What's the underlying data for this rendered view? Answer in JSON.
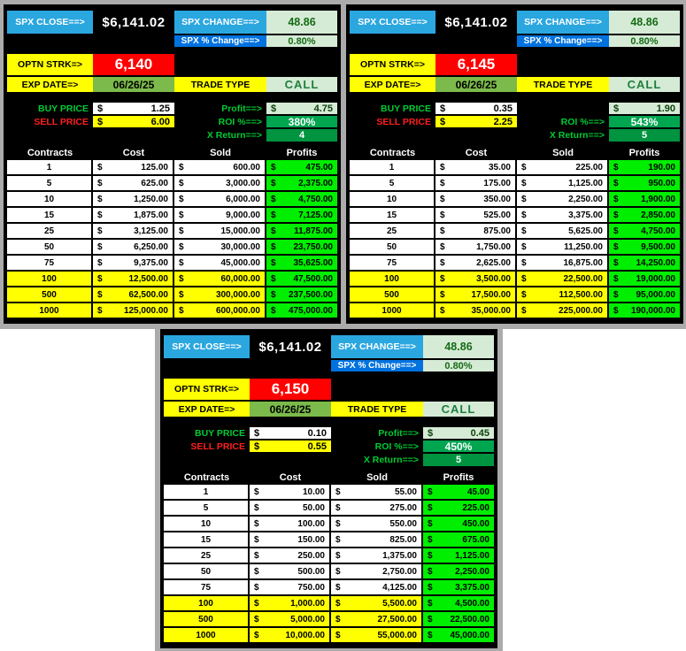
{
  "colors": {
    "page_bg": "#ffffff",
    "backdrop_gray": "#ababab",
    "panel_bg": "#000000",
    "label_cyan": "#2ba7e0",
    "label_blue": "#0072df",
    "label_yellow": "#ffff00",
    "pale_green_cell": "#d6ebd6",
    "dark_green_text": "#156b15",
    "strike_red": "#ff0000",
    "exp_date_green": "#7bba4b",
    "roi_green": "#00a550",
    "x_return_green": "#009440",
    "profit_bright_green": "#00ee00",
    "buy_label_green": "#00cc33",
    "sell_label_red": "#ff1f1f"
  },
  "panels": [
    {
      "currency": "$",
      "spx_close_label": "SPX CLOSE==>",
      "spx_close_value": "$6,141.02",
      "spx_change_label": "SPX CHANGE==>",
      "spx_change_value": "48.86",
      "spx_pct_change_label": "SPX % Change==>",
      "spx_pct_change_value": "0.80%",
      "optn_strk_label": "OPTN STRK=>",
      "strike": "6,140",
      "exp_date_label": "EXP DATE=>",
      "exp_date": "06/26/25",
      "trade_type_label": "TRADE TYPE",
      "trade_type": "CALL",
      "buy_price_label": "BUY PRICE",
      "buy_price": "1.25",
      "sell_price_label": "SELL PRICE",
      "sell_price": "6.00",
      "profit_label": "Profit==>",
      "profit": "4.75",
      "roi_label": "ROI %==>",
      "roi": "380%",
      "x_return_label": "X Return==>",
      "x_return": "4",
      "table": {
        "headers": [
          "Contracts",
          "Cost",
          "Sold",
          "Profits"
        ],
        "rows": [
          {
            "contracts": "1",
            "cost": "125.00",
            "sold": "600.00",
            "profit": "475.00",
            "highlight": false
          },
          {
            "contracts": "5",
            "cost": "625.00",
            "sold": "3,000.00",
            "profit": "2,375.00",
            "highlight": false
          },
          {
            "contracts": "10",
            "cost": "1,250.00",
            "sold": "6,000.00",
            "profit": "4,750.00",
            "highlight": false
          },
          {
            "contracts": "15",
            "cost": "1,875.00",
            "sold": "9,000.00",
            "profit": "7,125.00",
            "highlight": false
          },
          {
            "contracts": "25",
            "cost": "3,125.00",
            "sold": "15,000.00",
            "profit": "11,875.00",
            "highlight": false
          },
          {
            "contracts": "50",
            "cost": "6,250.00",
            "sold": "30,000.00",
            "profit": "23,750.00",
            "highlight": false
          },
          {
            "contracts": "75",
            "cost": "9,375.00",
            "sold": "45,000.00",
            "profit": "35,625.00",
            "highlight": false
          },
          {
            "contracts": "100",
            "cost": "12,500.00",
            "sold": "60,000.00",
            "profit": "47,500.00",
            "highlight": true
          },
          {
            "contracts": "500",
            "cost": "62,500.00",
            "sold": "300,000.00",
            "profit": "237,500.00",
            "highlight": true
          },
          {
            "contracts": "1000",
            "cost": "125,000.00",
            "sold": "600,000.00",
            "profit": "475,000.00",
            "highlight": true
          }
        ]
      }
    },
    {
      "currency": "$",
      "spx_close_label": "SPX CLOSE==>",
      "spx_close_value": "$6,141.02",
      "spx_change_label": "SPX CHANGE==>",
      "spx_change_value": "48.86",
      "spx_pct_change_label": "SPX % Change==>",
      "spx_pct_change_value": "0.80%",
      "optn_strk_label": "OPTN STRK=>",
      "strike": "6,145",
      "exp_date_label": "EXP DATE=>",
      "exp_date": "06/26/25",
      "trade_type_label": "TRADE TYPE",
      "trade_type": "CALL",
      "buy_price_label": "BUY PRICE",
      "buy_price": "0.35",
      "sell_price_label": "SELL PRICE",
      "sell_price": "2.25",
      "profit_label": "",
      "profit": "1.90",
      "roi_label": "ROI %==>",
      "roi": "543%",
      "x_return_label": "X Return==>",
      "x_return": "5",
      "table": {
        "headers": [
          "Contracts",
          "Cost",
          "Sold",
          "Profits"
        ],
        "rows": [
          {
            "contracts": "1",
            "cost": "35.00",
            "sold": "225.00",
            "profit": "190.00",
            "highlight": false
          },
          {
            "contracts": "5",
            "cost": "175.00",
            "sold": "1,125.00",
            "profit": "950.00",
            "highlight": false
          },
          {
            "contracts": "10",
            "cost": "350.00",
            "sold": "2,250.00",
            "profit": "1,900.00",
            "highlight": false
          },
          {
            "contracts": "15",
            "cost": "525.00",
            "sold": "3,375.00",
            "profit": "2,850.00",
            "highlight": false
          },
          {
            "contracts": "25",
            "cost": "875.00",
            "sold": "5,625.00",
            "profit": "4,750.00",
            "highlight": false
          },
          {
            "contracts": "50",
            "cost": "1,750.00",
            "sold": "11,250.00",
            "profit": "9,500.00",
            "highlight": false
          },
          {
            "contracts": "75",
            "cost": "2,625.00",
            "sold": "16,875.00",
            "profit": "14,250.00",
            "highlight": false
          },
          {
            "contracts": "100",
            "cost": "3,500.00",
            "sold": "22,500.00",
            "profit": "19,000.00",
            "highlight": true
          },
          {
            "contracts": "500",
            "cost": "17,500.00",
            "sold": "112,500.00",
            "profit": "95,000.00",
            "highlight": true
          },
          {
            "contracts": "1000",
            "cost": "35,000.00",
            "sold": "225,000.00",
            "profit": "190,000.00",
            "highlight": true
          }
        ]
      }
    },
    {
      "currency": "$",
      "spx_close_label": "SPX CLOSE==>",
      "spx_close_value": "$6,141.02",
      "spx_change_label": "SPX CHANGE==>",
      "spx_change_value": "48.86",
      "spx_pct_change_label": "SPX % Change==>",
      "spx_pct_change_value": "0.80%",
      "optn_strk_label": "OPTN STRK=>",
      "strike": "6,150",
      "exp_date_label": "EXP DATE=>",
      "exp_date": "06/26/25",
      "trade_type_label": "TRADE TYPE",
      "trade_type": "CALL",
      "buy_price_label": "BUY PRICE",
      "buy_price": "0.10",
      "sell_price_label": "SELL PRICE",
      "sell_price": "0.55",
      "profit_label": "Profit==>",
      "profit": "0.45",
      "roi_label": "ROI %==>",
      "roi": "450%",
      "x_return_label": "X Return==>",
      "x_return": "5",
      "table": {
        "headers": [
          "Contracts",
          "Cost",
          "Sold",
          "Profits"
        ],
        "rows": [
          {
            "contracts": "1",
            "cost": "10.00",
            "sold": "55.00",
            "profit": "45.00",
            "highlight": false
          },
          {
            "contracts": "5",
            "cost": "50.00",
            "sold": "275.00",
            "profit": "225.00",
            "highlight": false
          },
          {
            "contracts": "10",
            "cost": "100.00",
            "sold": "550.00",
            "profit": "450.00",
            "highlight": false
          },
          {
            "contracts": "15",
            "cost": "150.00",
            "sold": "825.00",
            "profit": "675.00",
            "highlight": false
          },
          {
            "contracts": "25",
            "cost": "250.00",
            "sold": "1,375.00",
            "profit": "1,125.00",
            "highlight": false
          },
          {
            "contracts": "50",
            "cost": "500.00",
            "sold": "2,750.00",
            "profit": "2,250.00",
            "highlight": false
          },
          {
            "contracts": "75",
            "cost": "750.00",
            "sold": "4,125.00",
            "profit": "3,375.00",
            "highlight": false
          },
          {
            "contracts": "100",
            "cost": "1,000.00",
            "sold": "5,500.00",
            "profit": "4,500.00",
            "highlight": true
          },
          {
            "contracts": "500",
            "cost": "5,000.00",
            "sold": "27,500.00",
            "profit": "22,500.00",
            "highlight": true
          },
          {
            "contracts": "1000",
            "cost": "10,000.00",
            "sold": "55,000.00",
            "profit": "45,000.00",
            "highlight": true
          }
        ]
      }
    }
  ]
}
